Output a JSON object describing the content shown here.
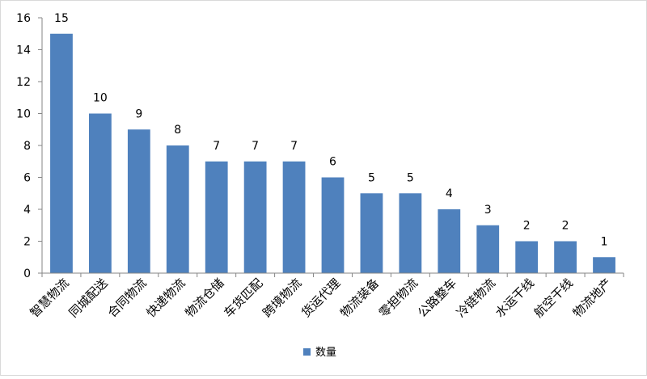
{
  "chart_data": {
    "type": "bar",
    "categories": [
      "智慧物流",
      "同城配送",
      "合同物流",
      "快递物流",
      "物流仓储",
      "车货匹配",
      "跨境物流",
      "货运代理",
      "物流装备",
      "零担物流",
      "公路整车",
      "冷链物流",
      "水运干线",
      "航空干线",
      "物流地产"
    ],
    "series": [
      {
        "name": "数量",
        "values": [
          15,
          10,
          9,
          8,
          7,
          7,
          7,
          6,
          5,
          5,
          4,
          3,
          2,
          2,
          1
        ],
        "color": "#4f81bd"
      }
    ],
    "ylim": [
      0,
      16
    ],
    "yticks": [
      0,
      2,
      4,
      6,
      8,
      10,
      12,
      14,
      16
    ],
    "grid": false,
    "legend": "bottom-center",
    "data_labels": true,
    "title": "",
    "xlabel": "",
    "ylabel": ""
  }
}
